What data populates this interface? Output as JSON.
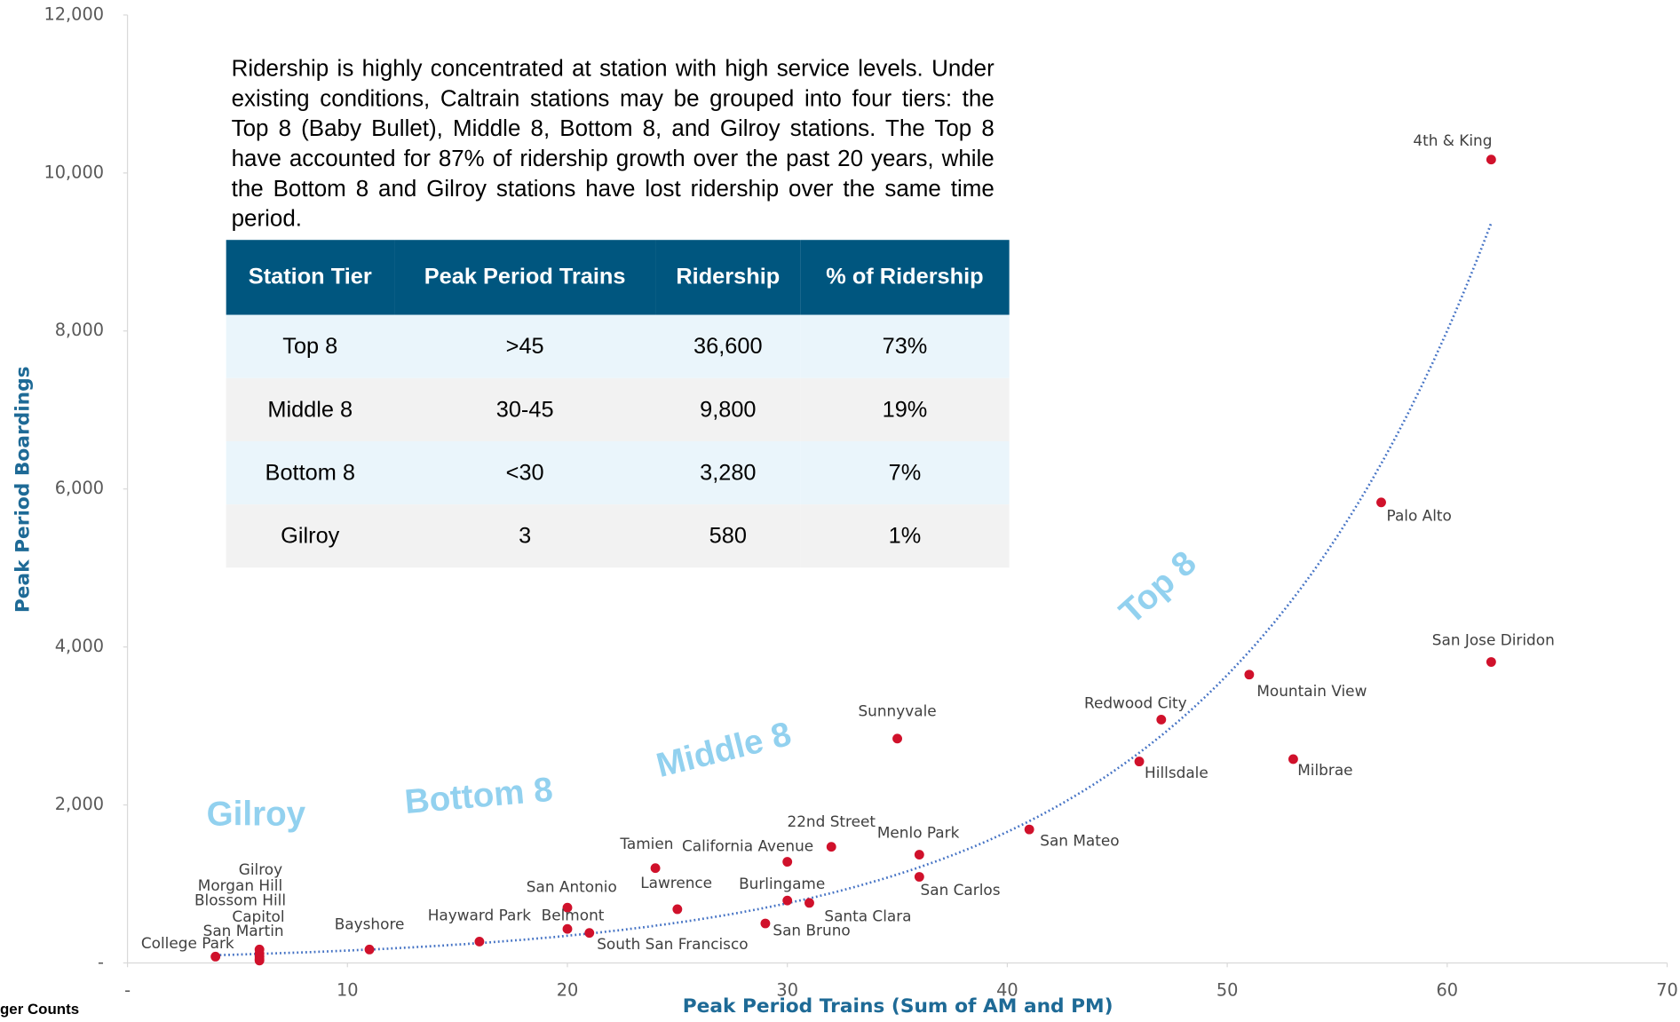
{
  "chart_data": {
    "type": "scatter",
    "x_label": "Peak Period Trains (Sum of AM and PM)",
    "y_label": "Peak Period Boardings",
    "labels": [
      "4th & King",
      "Palo Alto",
      "San Jose Diridon",
      "Mountain View",
      "Redwood City",
      "Milbrae",
      "Hillsdale",
      "Sunnyvale",
      "San Mateo",
      "22nd Street",
      "Menlo Park",
      "California Avenue",
      "Tamien",
      "San Carlos",
      "Lawrence",
      "Burlingame",
      "Santa Clara",
      "San Antonio",
      "San Bruno",
      "Belmont",
      "South San Francisco",
      "Hayward Park",
      "Bayshore",
      "College Park",
      "Gilroy",
      "Morgan Hill",
      "Blossom Hill",
      "Capitol",
      "San Martin"
    ],
    "x": [
      62,
      57,
      62,
      51,
      47,
      53,
      46,
      35,
      41,
      32,
      36,
      30,
      24,
      36,
      25,
      30,
      31,
      20,
      29,
      20,
      21,
      16,
      11,
      4,
      6,
      6,
      6,
      6,
      6
    ],
    "values": [
      10170,
      5830,
      3810,
      3650,
      3080,
      2580,
      2550,
      2840,
      1690,
      1470,
      1370,
      1280,
      1200,
      1090,
      680,
      790,
      760,
      700,
      500,
      430,
      380,
      270,
      170,
      80,
      170,
      120,
      80,
      50,
      30
    ],
    "color": "#d0112b",
    "trendline": "exponential",
    "trend_color": "#4472c4",
    "xlim": [
      0,
      70
    ],
    "ylim": [
      0,
      12000
    ],
    "xticks": [
      {
        "value": 0,
        "label": "-"
      },
      10,
      20,
      30,
      40,
      50,
      60,
      70
    ],
    "yticks": [
      {
        "value": 0,
        "label": "-"
      },
      {
        "value": 2000,
        "label": "2,000"
      },
      {
        "value": 4000,
        "label": "4,000"
      },
      {
        "value": 6000,
        "label": "6,000"
      },
      {
        "value": 8000,
        "label": "8,000"
      },
      {
        "value": 10000,
        "label": "10,000"
      },
      {
        "value": 12000,
        "label": "12,000"
      }
    ],
    "annotations": [
      "Gilroy",
      "Bottom 8",
      "Middle 8",
      "Top 8"
    ],
    "note": "Ridership is highly concentrated at station with high service levels. Under existing conditions, Caltrain stations may be grouped into four tiers: the Top 8 (Baby Bullet), Middle 8, Bottom 8, and Gilroy stations. The Top 8 have accounted for 87% of ridership growth over the past 20 years, while the Bottom 8 and Gilroy stations have lost ridership over the same time period.",
    "table": {
      "columns": [
        "Station Tier",
        "Peak Period Trains",
        "Ridership",
        "% of Ridership"
      ],
      "rows": [
        [
          "Top 8",
          ">45",
          "36,600",
          "73%"
        ],
        [
          "Middle 8",
          "30-45",
          "9,800",
          "19%"
        ],
        [
          "Bottom 8",
          "<30",
          "3,280",
          "7%"
        ],
        [
          "Gilroy",
          "3",
          "580",
          "1%"
        ]
      ]
    },
    "footer": "ger Counts"
  }
}
